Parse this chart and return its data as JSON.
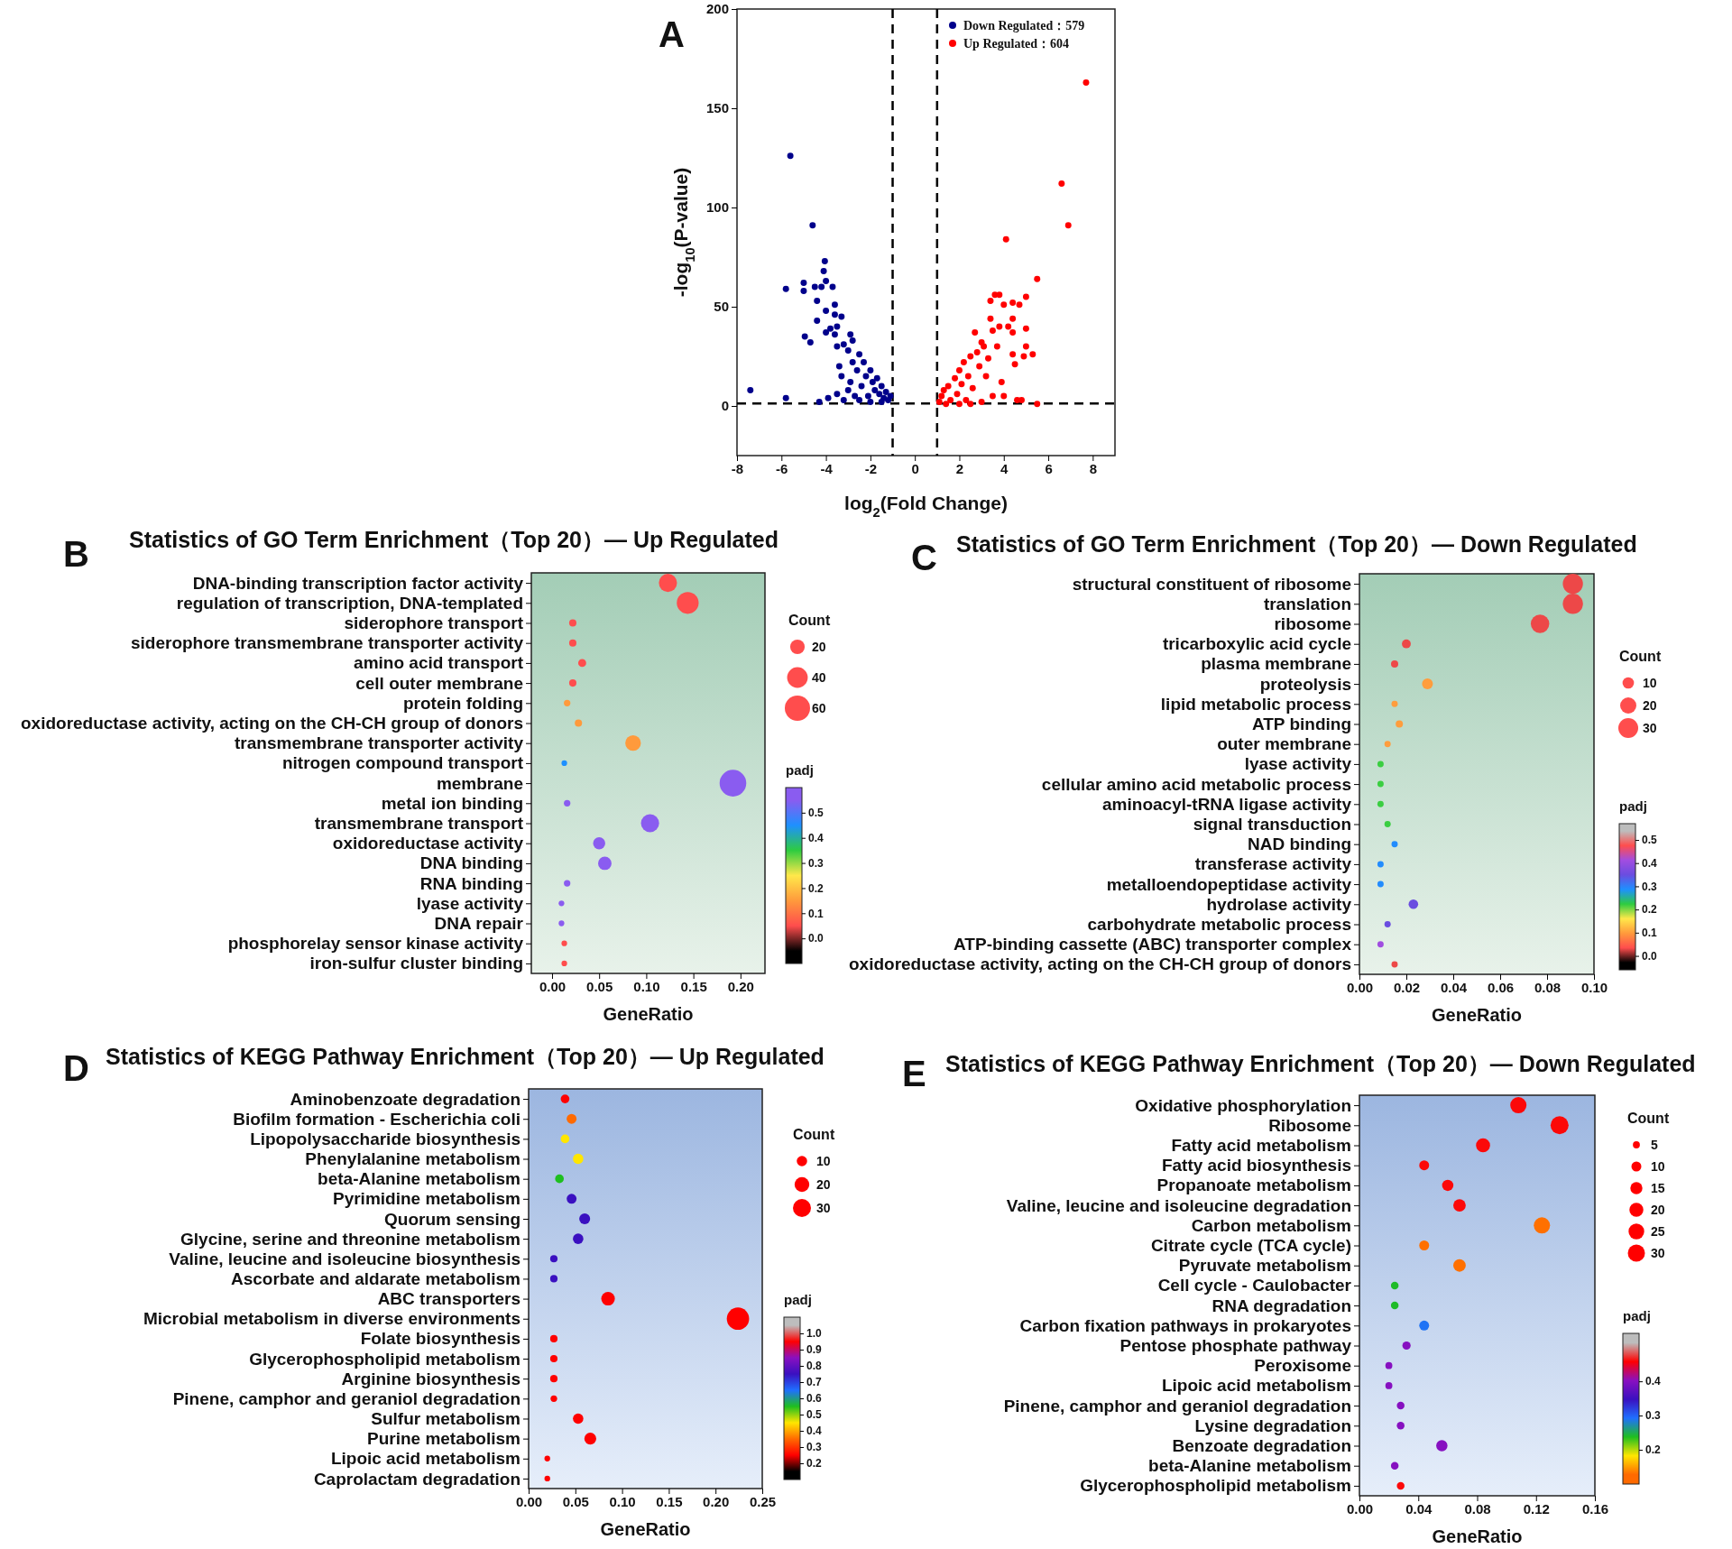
{
  "chart_data": [
    {
      "type": "scatter",
      "annotations": [
        "A"
      ],
      "xlabel": "log$_{2}$(Fold Change)",
      "ylabel": "-log$_{10}$(P-value)",
      "xlim": [
        -8,
        9
      ],
      "ylim": [
        -25,
        200
      ],
      "xticks": [
        -8,
        -6,
        -4,
        -2,
        0,
        2,
        4,
        6,
        8
      ],
      "yticks": [
        0,
        50,
        100,
        150,
        200
      ],
      "legend": "top right",
      "marker": "circle",
      "ref_lines": [
        {
          "axis": "x",
          "value": -1,
          "color": "#000000",
          "line_style": "dashed"
        },
        {
          "axis": "x",
          "value": 1,
          "color": "#000000",
          "line_style": "dashed"
        },
        {
          "axis": "y",
          "value": 1.3,
          "color": "#000000",
          "line_style": "dashed"
        }
      ],
      "series": [
        {
          "name": "Down Regulated：579",
          "color": "#00008b",
          "x": [
            -7.4,
            -5.8,
            -5.8,
            -5.6,
            -5,
            -5,
            -4.95,
            -4.7,
            -4.6,
            -4.5,
            -4.4,
            -4.4,
            -4.3,
            -4.2,
            -4.1,
            -4.05,
            -4,
            -4,
            -4,
            -3.9,
            -3.8,
            -3.7,
            -3.6,
            -3.6,
            -3.6,
            -3.5,
            -3.5,
            -3.4,
            -3.3,
            -3.3,
            -3.2,
            -3.5,
            -3.2,
            -3,
            -2.9,
            -2.9,
            -2.8,
            -2.8,
            -2.7,
            -2.6,
            -2.5,
            -2.4,
            -2.3,
            -2.2,
            -2.1,
            -2,
            -1.9,
            -1.8,
            -1.7,
            -1.6,
            -1.5,
            -1.4,
            -1.3,
            -1.2,
            -1.1,
            -2.5,
            -3,
            -2,
            -1.5
          ],
          "values": [
            8,
            4,
            59,
            126,
            58,
            62,
            35,
            32,
            91,
            60,
            53,
            43,
            2,
            60,
            68,
            73,
            63,
            48,
            37,
            4,
            39,
            60,
            51,
            46,
            36,
            30,
            40,
            20,
            45,
            15,
            31,
            6,
            3,
            28,
            36,
            12,
            33,
            22,
            5,
            18,
            26,
            10,
            22,
            15,
            5,
            18,
            12,
            8,
            14,
            6,
            10,
            4,
            7,
            3,
            5,
            3,
            8,
            2,
            2
          ]
        },
        {
          "name": "Up Regulated：604",
          "color": "#ff0000",
          "x": [
            1.1,
            1.2,
            1.3,
            1.5,
            1.6,
            1.8,
            1.9,
            2,
            2.1,
            2.2,
            2.3,
            2.4,
            2.5,
            2.6,
            2.7,
            2.8,
            2.9,
            3,
            3.1,
            3.2,
            3.3,
            3.4,
            3.4,
            3.5,
            3.6,
            3.7,
            3.8,
            3.8,
            3.9,
            4,
            4,
            4.1,
            4.2,
            4.4,
            4.4,
            4.4,
            4.4,
            4.5,
            4.7,
            4.6,
            4.8,
            4.9,
            5,
            5,
            5,
            5.3,
            5.5,
            5.5,
            6.6,
            6.9,
            7.7,
            1.4,
            2,
            3,
            3.5,
            2.5
          ],
          "values": [
            2,
            5,
            8,
            10,
            3,
            14,
            6,
            18,
            11,
            22,
            3,
            15,
            25,
            9,
            37,
            27,
            20,
            32,
            30,
            15,
            24,
            53,
            44,
            38,
            56,
            30,
            56,
            40,
            12,
            5,
            51,
            84,
            40,
            52,
            37,
            44,
            26,
            21,
            51,
            3,
            3,
            25,
            55,
            39,
            30,
            26,
            64,
            1,
            112,
            91,
            163,
            1,
            1,
            2,
            5,
            1
          ]
        }
      ]
    },
    {
      "type": "bubble",
      "orientation": "horizontal",
      "annotations": [
        "B"
      ],
      "title": "Statistics of GO Term Enrichment（Top 20）— Up Regulated",
      "xlabel": "GeneRatio",
      "categories": [
        "DNA-binding transcription factor activity",
        "regulation of transcription, DNA-templated",
        "siderophore transport",
        "siderophore transmembrane transporter activity",
        "amino acid transport",
        "cell outer membrane",
        "protein folding",
        "oxidoreductase activity, acting on the CH-CH group of donors",
        "transmembrane transporter activity",
        "nitrogen compound transport",
        "membrane",
        "metal ion binding",
        "transmembrane transport",
        "oxidoreductase activity",
        "DNA binding",
        "RNA binding",
        "lyase activity",
        "DNA repair",
        "phosphorelay sensor kinase activity",
        "iron-sulfur cluster binding"
      ],
      "values": [
        0.123,
        0.144,
        0.022,
        0.022,
        0.032,
        0.022,
        0.016,
        0.028,
        0.086,
        0.013,
        0.192,
        0.016,
        0.104,
        0.05,
        0.056,
        0.016,
        0.01,
        0.01,
        0.013,
        0.013
      ],
      "sizes": [
        31,
        45,
        5,
        5,
        6,
        5,
        4,
        5,
        23,
        3,
        67,
        4,
        31,
        14,
        17,
        4,
        3,
        3,
        3,
        3
      ],
      "cvalues": [
        0.05,
        0.05,
        0.05,
        0.05,
        0.05,
        0.05,
        0.15,
        0.15,
        0.15,
        0.45,
        0.55,
        0.55,
        0.55,
        0.55,
        0.55,
        0.55,
        0.55,
        0.55,
        0.05,
        0.05
      ],
      "xlim": [
        -0.022,
        0.226
      ],
      "xticks": [
        {
          "value": 0,
          "label": "0.00"
        },
        {
          "value": 0.05,
          "label": "0.05"
        },
        {
          "value": 0.1,
          "label": "0.10"
        },
        {
          "value": 0.15,
          "label": "0.15"
        },
        {
          "value": 0.2,
          "label": "0.20"
        }
      ],
      "legend_title": "Count",
      "size_legend": [
        20,
        40,
        60
      ],
      "clabel": "padj",
      "clim": [
        -0.1,
        0.6
      ],
      "cticks": [
        {
          "value": 0,
          "label": "0.0"
        },
        {
          "value": 0.1,
          "label": "0.1"
        },
        {
          "value": 0.2,
          "label": "0.2"
        },
        {
          "value": 0.3,
          "label": "0.3"
        },
        {
          "value": 0.4,
          "label": "0.4"
        },
        {
          "value": 0.5,
          "label": "0.5"
        }
      ]
    },
    {
      "type": "bubble",
      "orientation": "horizontal",
      "annotations": [
        "C"
      ],
      "title": "Statistics of GO Term Enrichment（Top 20）— Down Regulated",
      "xlabel": "GeneRatio",
      "categories": [
        "structural constituent of ribosome",
        "translation",
        "ribosome",
        "tricarboxylic acid cycle",
        "plasma membrane",
        "proteolysis",
        "lipid metabolic process",
        "ATP binding",
        "outer membrane",
        "lyase activity",
        "cellular amino acid metabolic process",
        "aminoacyl-tRNA ligase activity",
        "signal transduction",
        "NAD binding",
        "transferase activity",
        "metalloendopeptidase activity",
        "hydrolase activity",
        "carbohydrate metabolic process",
        "ATP-binding cassette (ABC) transporter complex",
        "oxidoreductase activity, acting on the CH-CH group of donors"
      ],
      "values": [
        0.091,
        0.091,
        0.077,
        0.02,
        0.015,
        0.029,
        0.015,
        0.017,
        0.012,
        0.009,
        0.009,
        0.009,
        0.012,
        0.015,
        0.009,
        0.009,
        0.023,
        0.012,
        0.009,
        0.015
      ],
      "sizes": [
        31,
        31,
        26,
        6,
        4,
        9,
        3,
        4,
        3,
        3,
        3,
        3,
        3,
        3,
        3,
        3,
        7,
        3,
        3,
        3
      ],
      "cvalues": [
        0.03,
        0.03,
        0.03,
        0.03,
        0.03,
        0.1,
        0.1,
        0.1,
        0.1,
        0.22,
        0.22,
        0.22,
        0.22,
        0.29,
        0.29,
        0.29,
        0.35,
        0.35,
        0.41,
        0.03
      ],
      "xlim": [
        0,
        0.1
      ],
      "xticks": [
        {
          "value": 0,
          "label": "0.00"
        },
        {
          "value": 0.02,
          "label": "0.02"
        },
        {
          "value": 0.04,
          "label": "0.04"
        },
        {
          "value": 0.06,
          "label": "0.06"
        },
        {
          "value": 0.08,
          "label": "0.08"
        },
        {
          "value": 0.1,
          "label": "0.10"
        }
      ],
      "legend_title": "Count",
      "size_legend": [
        10,
        20,
        30
      ],
      "clabel": "padj",
      "clim": [
        -0.06,
        0.57
      ],
      "cticks": [
        {
          "value": 0,
          "label": "0.0"
        },
        {
          "value": 0.1,
          "label": "0.1"
        },
        {
          "value": 0.2,
          "label": "0.2"
        },
        {
          "value": 0.3,
          "label": "0.3"
        },
        {
          "value": 0.4,
          "label": "0.4"
        },
        {
          "value": 0.5,
          "label": "0.5"
        }
      ]
    },
    {
      "type": "bubble",
      "orientation": "horizontal",
      "annotations": [
        "D"
      ],
      "title": "Statistics of KEGG Pathway Enrichment（Top 20）— Up  Regulated",
      "xlabel": "GeneRatio",
      "categories": [
        "Aminobenzoate degradation",
        "Biofilm formation - Escherichia coli",
        "Lipopolysaccharide biosynthesis",
        "Phenylalanine metabolism",
        "beta-Alanine metabolism",
        "Pyrimidine metabolism",
        "Quorum sensing",
        "Glycine, serine and threonine metabolism",
        "Valine, leucine and isoleucine biosynthesis",
        "Ascorbate and aldarate metabolism",
        "ABC transporters",
        "Microbial metabolism in diverse environments",
        "Folate biosynthesis",
        "Glycerophospholipid metabolism",
        "Arginine biosynthesis",
        "Pinene, camphor and geraniol degradation",
        "Sulfur metabolism",
        "Purine metabolism",
        "Lipoic acid metabolism",
        "Caprolactam degradation"
      ],
      "values": [
        0.039,
        0.046,
        0.039,
        0.053,
        0.033,
        0.046,
        0.06,
        0.053,
        0.027,
        0.027,
        0.085,
        0.224,
        0.027,
        0.027,
        0.027,
        0.027,
        0.053,
        0.066,
        0.02,
        0.02
      ],
      "sizes": [
        7,
        9,
        7,
        10,
        7,
        9,
        11,
        10,
        5,
        5,
        17,
        46,
        5,
        5,
        5,
        4,
        10,
        13,
        3,
        3
      ],
      "cvalues": [
        0.25,
        0.35,
        0.45,
        0.45,
        0.55,
        0.75,
        0.75,
        0.75,
        0.75,
        0.75,
        0.25,
        0.25,
        0.25,
        0.25,
        0.25,
        0.25,
        0.25,
        0.25,
        0.25,
        0.25
      ],
      "xlim": [
        0,
        0.25
      ],
      "xticks": [
        {
          "value": 0,
          "label": "0.00"
        },
        {
          "value": 0.05,
          "label": "0.05"
        },
        {
          "value": 0.1,
          "label": "0.10"
        },
        {
          "value": 0.15,
          "label": "0.15"
        },
        {
          "value": 0.2,
          "label": "0.20"
        },
        {
          "value": 0.25,
          "label": "0.25"
        }
      ],
      "legend_title": "Count",
      "size_legend": [
        10,
        20,
        30
      ],
      "clabel": "padj",
      "clim": [
        0.1,
        1.1
      ],
      "cticks": [
        {
          "value": 0.2,
          "label": "0.2"
        },
        {
          "value": 0.3,
          "label": "0.3"
        },
        {
          "value": 0.4,
          "label": "0.4"
        },
        {
          "value": 0.5,
          "label": "0.5"
        },
        {
          "value": 0.6,
          "label": "0.6"
        },
        {
          "value": 0.7,
          "label": "0.7"
        },
        {
          "value": 0.8,
          "label": "0.8"
        },
        {
          "value": 0.9,
          "label": "0.9"
        },
        {
          "value": 1,
          "label": "1.0"
        }
      ]
    },
    {
      "type": "bubble",
      "orientation": "horizontal",
      "annotations": [
        "E"
      ],
      "title": "Statistics of KEGG Pathway Enrichment（Top 20）— Down Regulated",
      "xlabel": "GeneRatio",
      "categories": [
        "Oxidative phosphorylation",
        "Ribosome",
        "Fatty acid metabolism",
        "Fatty acid biosynthesis",
        "Propanoate metabolism",
        "Valine, leucine and isoleucine degradation",
        "Carbon metabolism",
        "Citrate cycle (TCA cycle)",
        "Pyruvate metabolism",
        "Cell cycle - Caulobacter",
        "RNA degradation",
        "Carbon fixation pathways in prokaryotes",
        "Pentose phosphate pathway",
        "Peroxisome",
        "Lipoic acid metabolism",
        "Pinene, camphor and geraniol degradation",
        "Lysine degradation",
        "Benzoate degradation",
        "beta-Alanine metabolism",
        "Glycerophospholipid metabolism"
      ],
      "values": [
        0.108,
        0.136,
        0.084,
        0.044,
        0.06,
        0.068,
        0.124,
        0.044,
        0.068,
        0.024,
        0.024,
        0.044,
        0.032,
        0.02,
        0.02,
        0.028,
        0.028,
        0.056,
        0.024,
        0.028
      ],
      "sizes": [
        27,
        33,
        20,
        10,
        13,
        16,
        27,
        10,
        16,
        6,
        6,
        10,
        7,
        5,
        5,
        6,
        6,
        13,
        6,
        6
      ],
      "cvalues": [
        0.46,
        0.46,
        0.46,
        0.46,
        0.46,
        0.46,
        0.13,
        0.13,
        0.13,
        0.24,
        0.24,
        0.29,
        0.4,
        0.4,
        0.4,
        0.4,
        0.4,
        0.4,
        0.4,
        0.46
      ],
      "xlim": [
        0,
        0.16
      ],
      "xticks": [
        {
          "value": 0,
          "label": "0.00"
        },
        {
          "value": 0.04,
          "label": "0.04"
        },
        {
          "value": 0.08,
          "label": "0.08"
        },
        {
          "value": 0.12,
          "label": "0.12"
        },
        {
          "value": 0.16,
          "label": "0.16"
        }
      ],
      "legend_title": "Count",
      "size_legend": [
        5,
        10,
        15,
        20,
        25,
        30
      ],
      "clabel": "padj",
      "clim": [
        0.1,
        0.54
      ],
      "cticks": [
        {
          "value": 0.2,
          "label": "0.2"
        },
        {
          "value": 0.3,
          "label": "0.3"
        },
        {
          "value": 0.4,
          "label": "0.4"
        }
      ]
    }
  ]
}
